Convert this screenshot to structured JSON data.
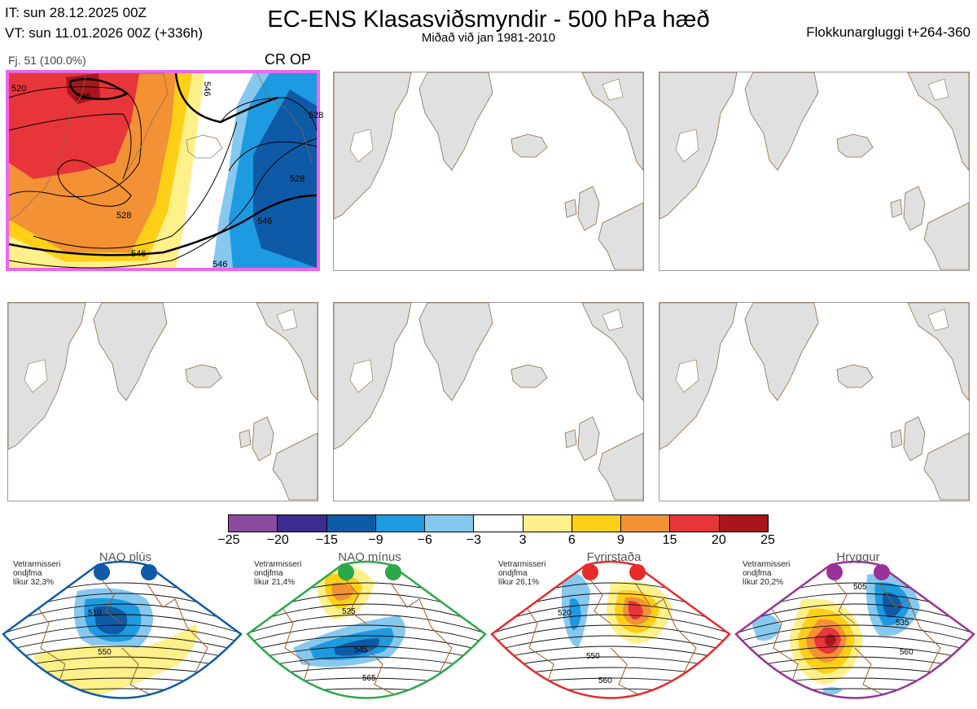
{
  "header": {
    "it_line": "IT: sun 28.12.2025 00Z",
    "vt_line": "VT: sun 11.01.2026 00Z  (+336h)",
    "title": "EC-ENS Klasasviðsmyndir - 500 hPa hæð",
    "subtitle": "Miðað við jan 1981-2010",
    "window": "Flokkunargluggi t+264-360"
  },
  "cluster_panel": {
    "label": "Fj. 51 (100.0%)",
    "tag": "CR OP",
    "contour_labels": [
      "520",
      "526",
      "528",
      "546",
      "528",
      "546",
      "546",
      "528",
      "546"
    ]
  },
  "colorbar": {
    "ticks": [
      "−25",
      "−20",
      "−15",
      "−9",
      "−6",
      "−3",
      "3",
      "6",
      "9",
      "15",
      "20",
      "25"
    ],
    "colors": [
      "#8a4a9e",
      "#3b2d8f",
      "#0e5aa7",
      "#1e9ae0",
      "#87c8ef",
      "#ffffff",
      "#fff08a",
      "#fdd017",
      "#f39135",
      "#e8353a",
      "#a8161b"
    ]
  },
  "regimes": [
    {
      "name": "NAO plús",
      "info": [
        "Vetrarmisseri",
        "ondjfma",
        "líkur 32,3%"
      ],
      "color": "#0f5ba8",
      "labels": [
        "510",
        "550"
      ]
    },
    {
      "name": "NAO mínus",
      "info": [
        "Vetrarmisseri",
        "ondjfma",
        "líkur 21,4%"
      ],
      "color": "#2aa84a",
      "labels": [
        "525",
        "545",
        "565"
      ]
    },
    {
      "name": "Fyrirstaða",
      "info": [
        "Vetrarmisseri",
        "ondjfma",
        "líkur 26,1%"
      ],
      "color": "#e82a2a",
      "labels": [
        "520",
        "550",
        "560"
      ]
    },
    {
      "name": "Hryggur",
      "info": [
        "Vetrarmisseri",
        "ondjfma",
        "líkur 20,2%"
      ],
      "color": "#993399",
      "labels": [
        "505",
        "535",
        "560"
      ]
    }
  ]
}
